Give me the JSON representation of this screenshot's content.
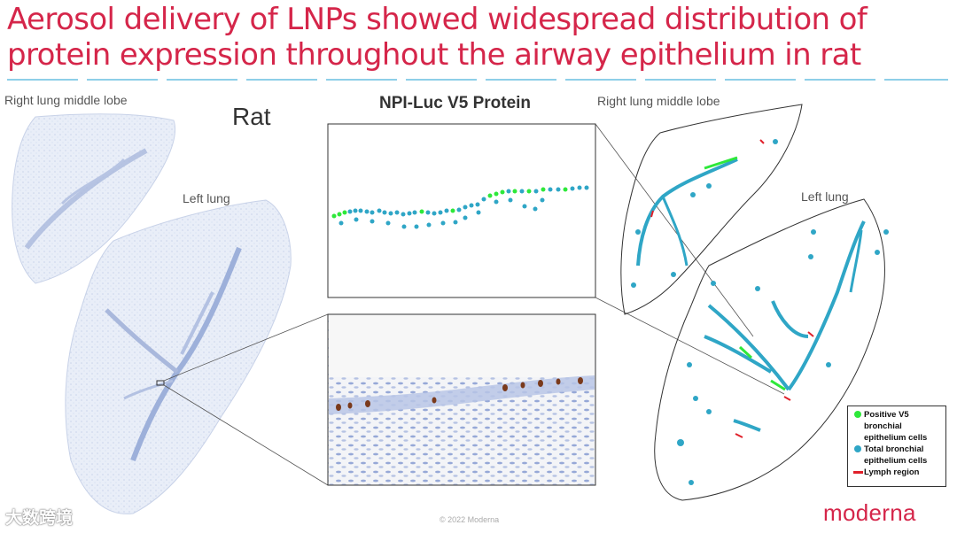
{
  "slide": {
    "title": "Aerosol delivery of LNPs showed widespread distribution of protein expression throughout the airway epithelium in rat",
    "species_label": "Rat",
    "panel_title": "NPI-Luc V5 Protein",
    "left_section": {
      "label_middle_lobe": "Right lung middle lobe",
      "label_left_lung": "Left lung"
    },
    "right_section": {
      "label_middle_lobe": "Right lung middle lobe",
      "label_left_lung": "Left lung"
    },
    "legend": {
      "items": [
        {
          "label": "Positive V5 bronchial epithelium cells",
          "color": "#2ee83a",
          "shape": "dot"
        },
        {
          "label": "Total bronchial epithelium cells",
          "color": "#2fa6c6",
          "shape": "dot"
        },
        {
          "label": "Lymph region",
          "color": "#e0202a",
          "shape": "bar"
        }
      ]
    },
    "footer": {
      "copyright": "© 2022 Moderna",
      "logo": "moderna",
      "watermark": "大数跨境"
    },
    "colors": {
      "title": "#d5264a",
      "positive": "#2ee83a",
      "total": "#2fa6c6",
      "lymph": "#e0202a",
      "accent_dashes": "#8ecfe8"
    }
  }
}
